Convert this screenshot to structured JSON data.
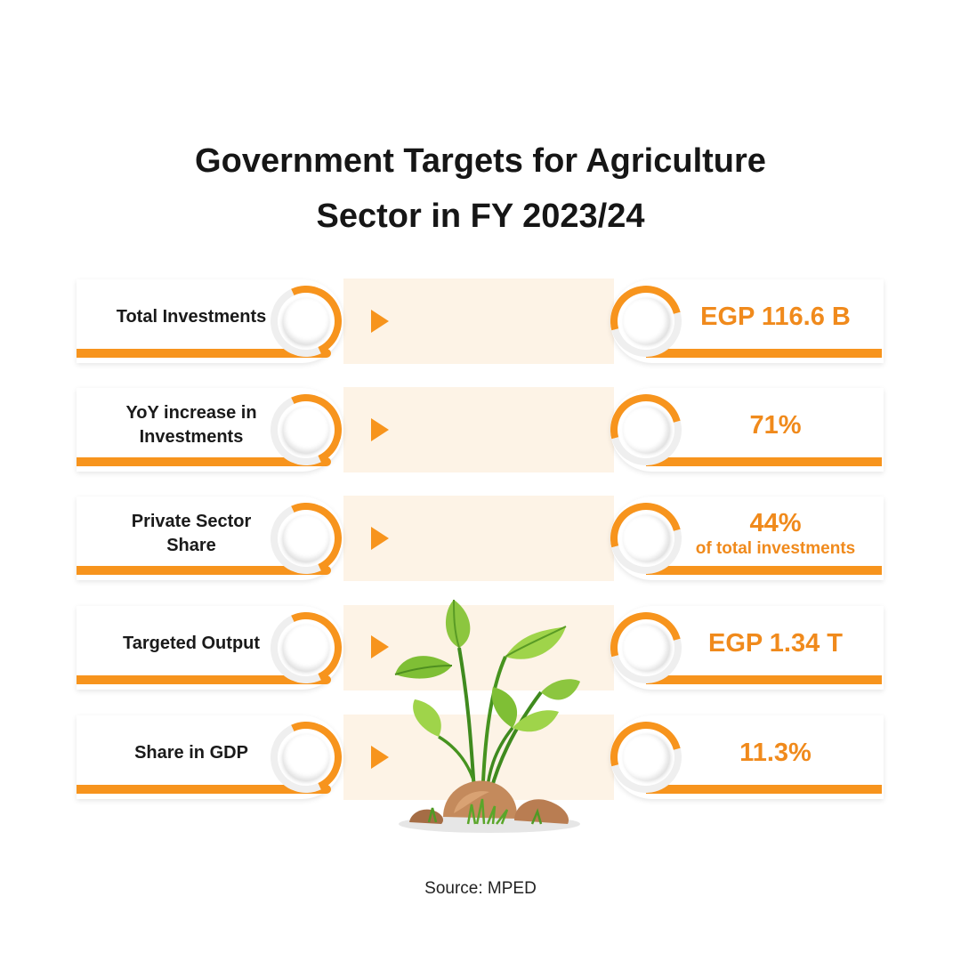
{
  "title_line1": "Government Targets for Agriculture",
  "title_line2": "Sector in FY 2023/24",
  "rows": [
    {
      "label_line1": "Total Investments",
      "label_line2": "",
      "value": "EGP 116.6 B",
      "value_sub": ""
    },
    {
      "label_line1": "YoY increase in",
      "label_line2": "Investments",
      "value": "71%",
      "value_sub": ""
    },
    {
      "label_line1": "Private Sector",
      "label_line2": "Share",
      "value": "44%",
      "value_sub": "of total investments"
    },
    {
      "label_line1": "Targeted Output",
      "label_line2": "",
      "value": "EGP 1.34 T",
      "value_sub": ""
    },
    {
      "label_line1": "Share in GDP",
      "label_line2": "",
      "value": "11.3%",
      "value_sub": ""
    }
  ],
  "source": "Source: MPED",
  "colors": {
    "accent": "#f7941d",
    "value_text": "#f08a1c",
    "band": "#fdf3e6"
  },
  "icons": {
    "arrow": "orange-triangle-arrow",
    "illustration": "plant-sprout-illustration"
  }
}
